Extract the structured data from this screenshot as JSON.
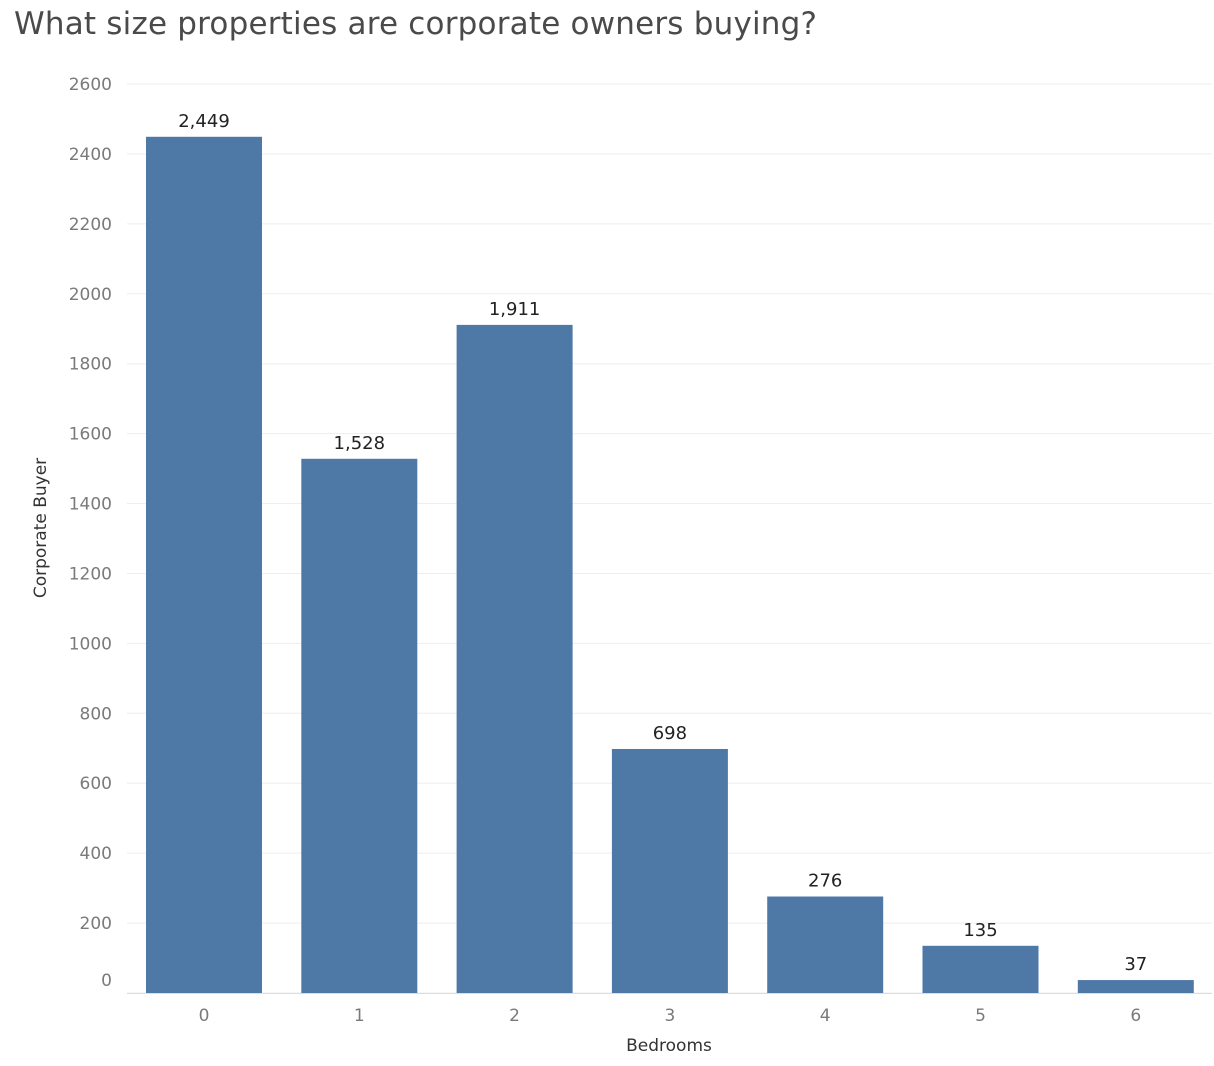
{
  "chart_data": {
    "type": "bar",
    "title": "What size properties are corporate owners buying?",
    "xlabel": "Bedrooms",
    "ylabel": "Corporate Buyer",
    "categories": [
      "0",
      "1",
      "2",
      "3",
      "4",
      "5",
      "6"
    ],
    "values": [
      2449,
      1528,
      1911,
      698,
      276,
      135,
      37
    ],
    "data_labels": [
      "2,449",
      "1,528",
      "1,911",
      "698",
      "276",
      "135",
      "37"
    ],
    "yticks": [
      0,
      200,
      400,
      600,
      800,
      1000,
      1200,
      1400,
      1600,
      1800,
      2000,
      2200,
      2400,
      2600
    ],
    "ylim": [
      0,
      2600
    ],
    "grid": true,
    "legend": "none",
    "bar_color": "#4e79a7",
    "grid_color": "#eeeeee"
  }
}
